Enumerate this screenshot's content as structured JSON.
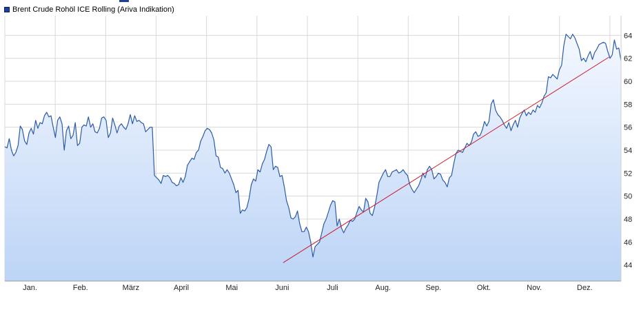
{
  "legend": {
    "label": "Brent Crude Rohöl ICE Rolling (Ariva Indikation)",
    "series_color": "#1f4fa0"
  },
  "colors": {
    "line": "#2a5aa8",
    "fill_top": "#f4f8ff",
    "fill_bottom": "#bcd4f6",
    "trendline": "#cc1a2a",
    "grid": "#d9d9d9"
  },
  "chart_data": {
    "type": "area",
    "title": "Brent Crude Rohöl ICE Rolling (Ariva Indikation)",
    "xlabel": "",
    "ylabel": "",
    "ylim": [
      42.6,
      65.7
    ],
    "y_ticks": [
      44,
      46,
      48,
      50,
      52,
      54,
      56,
      58,
      60,
      62,
      64
    ],
    "x_ticks": [
      "Jan.",
      "Feb.",
      "März",
      "April",
      "Mai",
      "Juni",
      "Juli",
      "Aug.",
      "Sep.",
      "Okt.",
      "Nov.",
      "Dez."
    ],
    "y_axis_position": "right",
    "grid": true,
    "series": [
      {
        "values": [
          54.3,
          54.2,
          55.0,
          54.0,
          53.5,
          53.8,
          54.4,
          56.1,
          55.8,
          54.8,
          54.5,
          55.5,
          55.9,
          55.4,
          56.6,
          55.9,
          56.4,
          56.3,
          57.0,
          57.3,
          56.9,
          57.0,
          56.0,
          55.1,
          56.6,
          56.9,
          56.3,
          54.0,
          55.7,
          56.1,
          55.0,
          55.3,
          56.4,
          54.4,
          54.6,
          56.0,
          56.2,
          56.1,
          56.9,
          56.0,
          56.3,
          55.6,
          55.5,
          55.9,
          56.8,
          56.9,
          56.6,
          55.1,
          55.5,
          56.8,
          56.2,
          55.5,
          56.1,
          56.3,
          56.0,
          55.8,
          56.3,
          57.1,
          56.3,
          57.0,
          56.5,
          56.6,
          56.4,
          56.3,
          55.6,
          55.8,
          56.0,
          56.0,
          51.8,
          51.6,
          51.4,
          51.1,
          51.8,
          51.7,
          51.8,
          51.6,
          51.2,
          51.1,
          50.9,
          51.0,
          51.6,
          51.2,
          51.7,
          52.7,
          53.0,
          53.3,
          53.2,
          53.8,
          54.0,
          54.8,
          55.2,
          55.7,
          55.9,
          55.8,
          55.5,
          54.9,
          53.5,
          53.4,
          52.5,
          52.4,
          52.0,
          52.3,
          52.0,
          51.5,
          51.0,
          50.3,
          50.5,
          48.5,
          48.8,
          48.7,
          49.0,
          49.8,
          51.0,
          51.5,
          51.3,
          52.3,
          52.1,
          52.8,
          53.2,
          53.9,
          54.5,
          54.3,
          52.3,
          52.6,
          52.5,
          51.7,
          51.8,
          50.8,
          49.6,
          49.0,
          48.1,
          48.0,
          48.2,
          48.7,
          47.6,
          46.9,
          46.9,
          47.3,
          46.9,
          46.0,
          44.7,
          45.6,
          45.8,
          46.0,
          46.8,
          47.6,
          48.0,
          48.6,
          49.2,
          49.6,
          49.5,
          47.4,
          48.0,
          47.2,
          46.8,
          47.2,
          47.5,
          47.9,
          47.8,
          48.0,
          48.6,
          49.1,
          48.8,
          48.6,
          49.8,
          49.5,
          48.5,
          48.3,
          49.0,
          50.0,
          51.2,
          51.6,
          52.0,
          52.3,
          51.7,
          51.7,
          52.1,
          52.2,
          52.3,
          52.0,
          52.1,
          52.3,
          52.0,
          51.8,
          51.0,
          50.6,
          50.3,
          50.6,
          50.9,
          51.4,
          52.0,
          51.6,
          52.3,
          52.6,
          52.3,
          51.5,
          51.7,
          52.0,
          51.9,
          51.4,
          51.2,
          50.8,
          51.6,
          51.8,
          52.8,
          53.7,
          54.0,
          53.9,
          53.8,
          54.2,
          54.6,
          54.4,
          54.7,
          55.4,
          55.6,
          55.2,
          55.3,
          55.8,
          56.5,
          56.1,
          56.5,
          58.0,
          58.4,
          57.5,
          57.1,
          56.9,
          56.6,
          56.2,
          55.9,
          56.4,
          55.7,
          56.2,
          56.6,
          56.0,
          56.8,
          57.2,
          57.5,
          57.0,
          57.3,
          57.1,
          57.5,
          57.3,
          57.9,
          57.7,
          58.1,
          58.7,
          59.0,
          60.4,
          60.3,
          60.6,
          60.4,
          60.2,
          61.0,
          61.4,
          63.1,
          64.1,
          63.9,
          63.7,
          64.1,
          63.8,
          63.3,
          62.8,
          61.8,
          62.0,
          61.7,
          62.2,
          62.6,
          61.9,
          62.5,
          62.8,
          63.2,
          63.3,
          63.4,
          63.3,
          62.6,
          62.0,
          62.3,
          63.6,
          62.8,
          62.9,
          61.8
        ],
        "color": "#2a5aa8"
      }
    ],
    "trendline": {
      "from": {
        "month_index": 5.52,
        "value": 44.2
      },
      "to": {
        "month_index": 11.98,
        "value": 62.1
      },
      "color": "#cc1a2a"
    },
    "x_domain": {
      "month_start": 0,
      "month_end": 12.22
    }
  }
}
